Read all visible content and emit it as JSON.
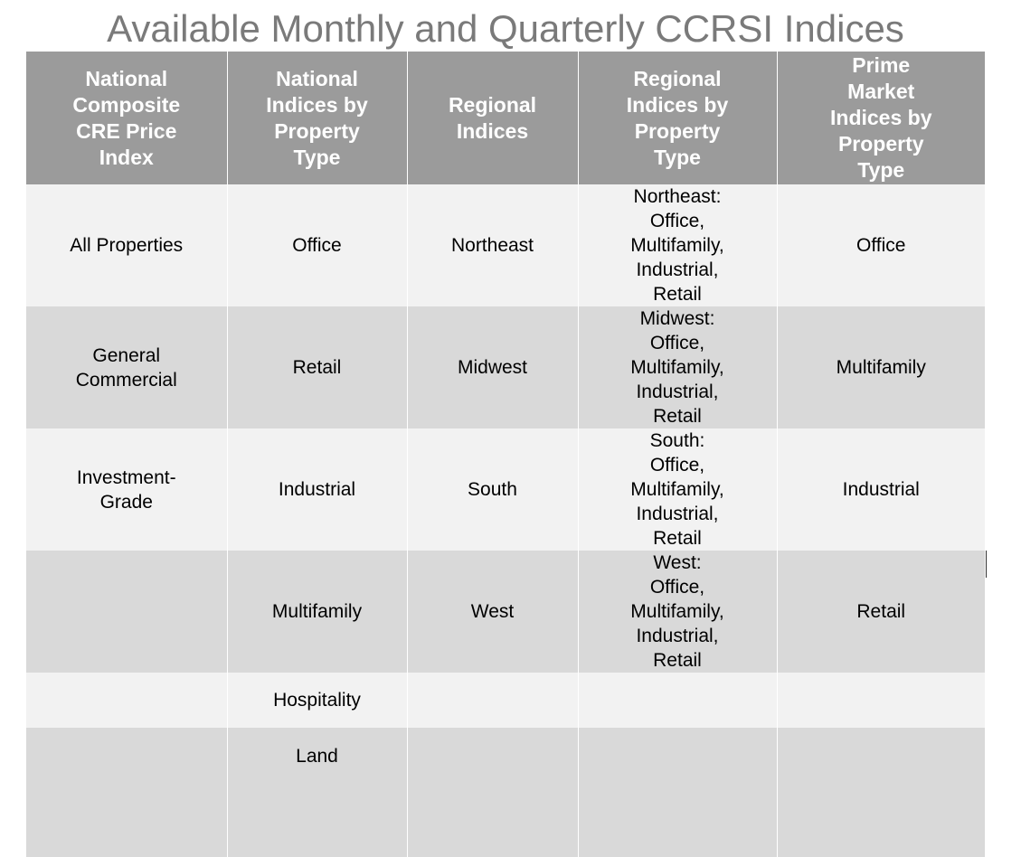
{
  "title": "Available Monthly and Quarterly CCRSI Indices",
  "table": {
    "headers": [
      "National\nComposite\nCRE Price\nIndex",
      "National\nIndices by\nProperty\nType",
      "Regional\nIndices",
      "Regional\nIndices by\nProperty\nType",
      "Prime\nMarket\nIndices by\nProperty\nType"
    ],
    "rows": [
      [
        "All Properties",
        "Office",
        "Northeast",
        "Northeast:\nOffice,\nMultifamily,\nIndustrial,\nRetail",
        "Office"
      ],
      [
        "General\nCommercial",
        "Retail",
        "Midwest",
        "Midwest:\nOffice,\nMultifamily,\nIndustrial,\nRetail",
        "Multifamily"
      ],
      [
        "Investment-\nGrade",
        "Industrial",
        "South",
        "South:\nOffice,\nMultifamily,\nIndustrial,\nRetail",
        "Industrial"
      ],
      [
        "",
        "Multifamily",
        "West",
        "West:\nOffice,\nMultifamily,\nIndustrial,\nRetail",
        "Retail"
      ],
      [
        "",
        "Hospitality",
        "",
        "",
        ""
      ],
      [
        "",
        "Land",
        "",
        "",
        ""
      ]
    ]
  },
  "colors": {
    "header_bg": "#9b9b9b",
    "row_light": "#f2f2f2",
    "row_dark": "#d9d9d9",
    "title_text": "#7a7a7a"
  }
}
